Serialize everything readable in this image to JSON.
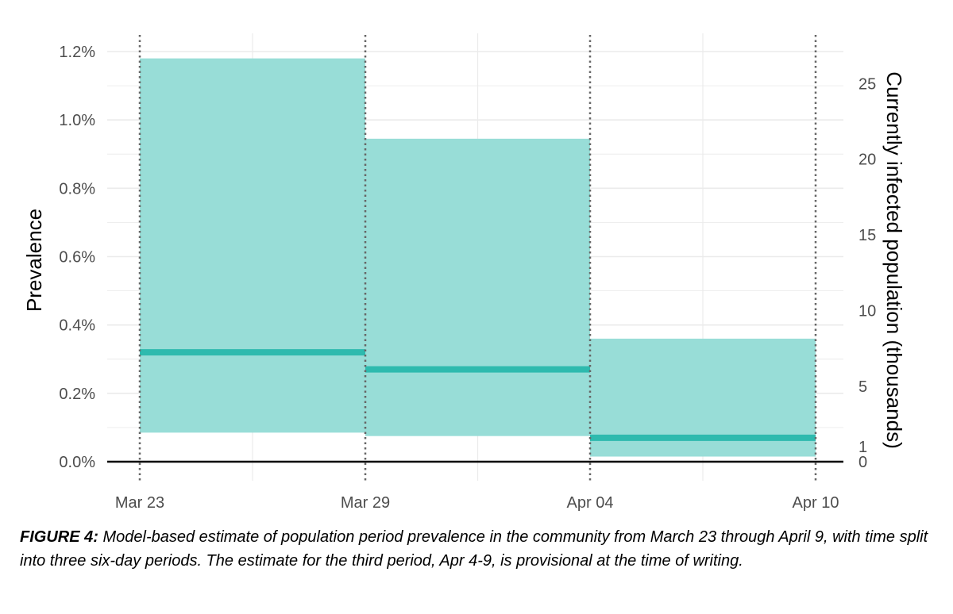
{
  "chart_data": {
    "type": "bar",
    "title": "",
    "x_axis": {
      "label": "",
      "ticks": [
        "Mar 23",
        "Mar 29",
        "Apr 04",
        "Apr 10"
      ]
    },
    "y_axis_left": {
      "label": "Prevalence",
      "ticks": [
        "0.0%",
        "0.2%",
        "0.4%",
        "0.6%",
        "0.8%",
        "1.0%",
        "1.2%"
      ],
      "tick_values": [
        0,
        0.2,
        0.4,
        0.6,
        0.8,
        1.0,
        1.2
      ],
      "ylim": [
        0,
        1.2
      ]
    },
    "y_axis_right": {
      "label": "Currently infected population (thousands)",
      "ticks": [
        "0",
        "1",
        "5",
        "10",
        "15",
        "20",
        "25"
      ],
      "tick_values_pct": [
        0,
        0.044,
        0.221,
        0.442,
        0.664,
        0.885,
        1.106
      ]
    },
    "periods": [
      {
        "x_start": "Mar 23",
        "x_end": "Mar 29",
        "estimate_pct": 0.32,
        "lower_pct": 0.085,
        "upper_pct": 1.18
      },
      {
        "x_start": "Mar 29",
        "x_end": "Apr 04",
        "estimate_pct": 0.27,
        "lower_pct": 0.075,
        "upper_pct": 0.945
      },
      {
        "x_start": "Apr 04",
        "x_end": "Apr 10",
        "estimate_pct": 0.07,
        "lower_pct": 0.015,
        "upper_pct": 0.36
      }
    ],
    "grid": true,
    "colors": {
      "band": "#98ddd7",
      "estimate_line": "#2ebaae",
      "grid": "#ebebeb",
      "baseline": "#000000",
      "divider": "#666666"
    }
  },
  "caption": {
    "label": "FIGURE 4:",
    "text": "Model-based estimate of population period prevalence in the community from March 23 through April 9, with time split into three six-day periods. The estimate for the third period, Apr 4-9, is provisional at the time of writing."
  }
}
